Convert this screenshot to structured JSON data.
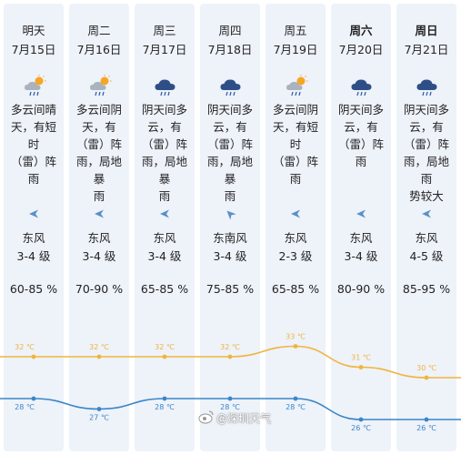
{
  "days": [
    {
      "day": "明天",
      "bold": false,
      "date": "7月15日",
      "icon": "partly-cloudy-rain-icon",
      "desc": "多云间晴\n天，有短时\n（雷）阵雨",
      "wind_dir": "东风",
      "wind_level": "3-4 级",
      "humidity": "60-85 %",
      "high": "32 ℃",
      "low": "28 ℃",
      "arrow": "west"
    },
    {
      "day": "周二",
      "bold": false,
      "date": "7月16日",
      "icon": "partly-cloudy-rain-icon",
      "desc": "多云间阴\n天，有\n（雷）阵\n雨，局地暴\n雨",
      "wind_dir": "东风",
      "wind_level": "3-4 级",
      "humidity": "70-90 %",
      "high": "32 ℃",
      "low": "27 ℃",
      "arrow": "west"
    },
    {
      "day": "周三",
      "bold": false,
      "date": "7月17日",
      "icon": "cloud-rain-icon",
      "desc": "阴天间多\n云，有\n（雷）阵\n雨，局地暴\n雨",
      "wind_dir": "东风",
      "wind_level": "3-4 级",
      "humidity": "65-85 %",
      "high": "32 ℃",
      "low": "28 ℃",
      "arrow": "west"
    },
    {
      "day": "周四",
      "bold": false,
      "date": "7月18日",
      "icon": "cloud-rain-icon",
      "desc": "阴天间多\n云，有\n（雷）阵\n雨，局地暴\n雨",
      "wind_dir": "东南风",
      "wind_level": "3-4 级",
      "humidity": "75-85 %",
      "high": "32 ℃",
      "low": "28 ℃",
      "arrow": "northwest"
    },
    {
      "day": "周五",
      "bold": false,
      "date": "7月19日",
      "icon": "partly-cloudy-rain-icon",
      "desc": "多云间阴\n天，有短时\n（雷）阵雨",
      "wind_dir": "东风",
      "wind_level": "2-3 级",
      "humidity": "65-85 %",
      "high": "33 ℃",
      "low": "28 ℃",
      "arrow": "west"
    },
    {
      "day": "周六",
      "bold": true,
      "date": "7月20日",
      "icon": "cloud-rain-icon",
      "desc": "阴天间多\n云，有\n（雷）阵雨",
      "wind_dir": "东风",
      "wind_level": "3-4 级",
      "humidity": "80-90 %",
      "high": "31 ℃",
      "low": "26 ℃",
      "arrow": "west"
    },
    {
      "day": "周日",
      "bold": true,
      "date": "7月21日",
      "icon": "cloud-rain-icon",
      "desc": "阴天间多\n云，有\n（雷）阵\n雨，局地雨\n势较大",
      "wind_dir": "东风",
      "wind_level": "4-5 级",
      "humidity": "85-95 %",
      "high": "30 ℃",
      "low": "26 ℃",
      "arrow": "west"
    }
  ],
  "chart_data": {
    "type": "line",
    "categories": [
      "7月15日",
      "7月16日",
      "7月17日",
      "7月18日",
      "7月19日",
      "7月20日",
      "7月21日"
    ],
    "series": [
      {
        "name": "",
        "values": [
          32,
          32,
          32,
          32,
          33,
          31,
          30
        ],
        "color": "#f0b43c"
      },
      {
        "name": "",
        "values": [
          28,
          27,
          28,
          28,
          28,
          26,
          26
        ],
        "color": "#3a86c8"
      }
    ],
    "unit": "℃"
  },
  "colors": {
    "panel": "#eef2f9",
    "high_line": "#f0b43c",
    "low_line": "#3a86c8",
    "arrow": "#5a8fc8"
  },
  "watermark": "@深圳天气"
}
